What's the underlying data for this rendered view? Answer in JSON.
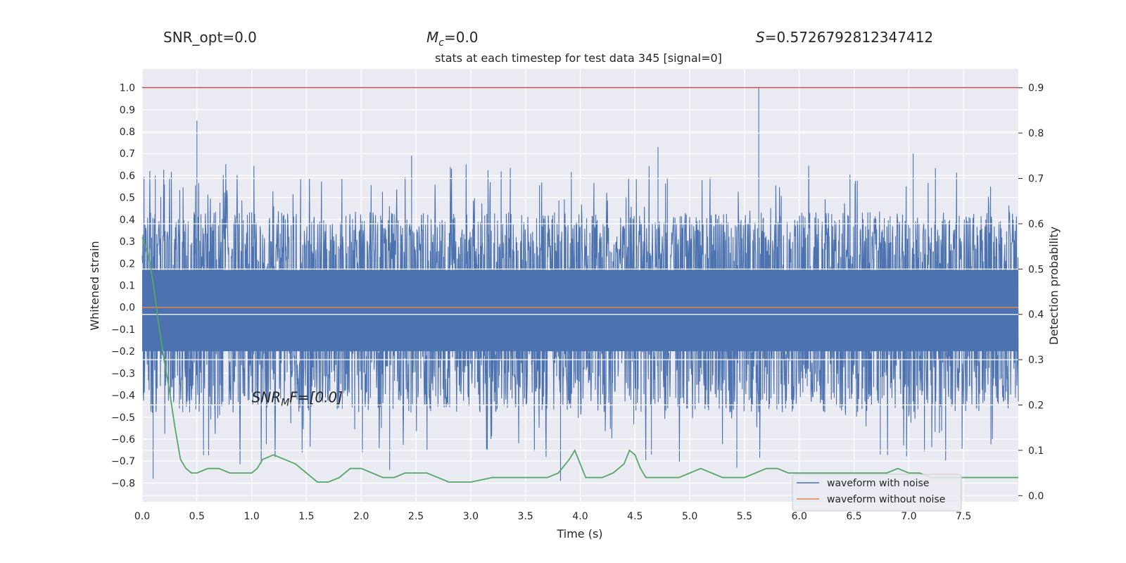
{
  "header": {
    "snr_opt": "SNR_opt=0.0",
    "mc_symbol": "M",
    "mc_sub": "c",
    "mc_value": "=0.0",
    "s_symbol": "S",
    "s_value": "=0.5726792812347412"
  },
  "chart_data": {
    "type": "line",
    "title": "stats at each timestep for test data 345 [signal=0]",
    "xlabel": "Time (s)",
    "ylabel": "Whitened strain",
    "y2label": "Detection probability",
    "xlim": [
      0,
      8
    ],
    "ylim": [
      -0.885,
      1.085
    ],
    "y2lim": [
      -0.0135,
      0.9415
    ],
    "x_ticks": [
      "0.0",
      "0.5",
      "1.0",
      "1.5",
      "2.0",
      "2.5",
      "3.0",
      "3.5",
      "4.0",
      "4.5",
      "5.0",
      "5.5",
      "6.0",
      "6.5",
      "7.0",
      "7.5"
    ],
    "y_ticks": [
      "1.0",
      "0.9",
      "0.8",
      "0.7",
      "0.6",
      "0.5",
      "0.4",
      "0.3",
      "0.2",
      "0.1",
      "0.0",
      "−0.1",
      "−0.2",
      "−0.3",
      "−0.4",
      "−0.5",
      "−0.6",
      "−0.7",
      "−0.8"
    ],
    "y2_ticks": [
      "0.9",
      "0.8",
      "0.7",
      "0.6",
      "0.5",
      "0.4",
      "0.3",
      "0.2",
      "0.1",
      "0.0"
    ],
    "threshold_line": {
      "axis": "y",
      "value": 1.0,
      "color": "#c44e52"
    },
    "annotation": {
      "base": "SNR",
      "sub": "M",
      "rest": "F=[0.0]",
      "x": 1.0,
      "y": -0.41
    },
    "noise_envelope": {
      "upper_typical": 0.3,
      "lower_typical": -0.33,
      "peaks": [
        [
          0.5,
          0.85
        ],
        [
          5.63,
          1.0
        ],
        [
          4.71,
          0.73
        ],
        [
          2.46,
          0.69
        ],
        [
          7.04,
          0.7
        ],
        [
          0.12,
          0.6
        ],
        [
          0.1,
          -0.78
        ],
        [
          3.82,
          -0.79
        ],
        [
          2.26,
          -0.74
        ],
        [
          5.43,
          -0.73
        ],
        [
          6.74,
          -0.67
        ],
        [
          4.65,
          -0.67
        ]
      ]
    },
    "series": [
      {
        "name": "waveform with noise",
        "color": "#4c72b0",
        "axis": "left",
        "kind": "noise"
      },
      {
        "name": "waveform without noise",
        "color": "#dd8452",
        "axis": "left",
        "x": [
          0,
          8
        ],
        "y": [
          0,
          0
        ]
      },
      {
        "name": "",
        "color": "#55a868",
        "axis": "right",
        "x": [
          0.0,
          0.05,
          0.1,
          0.15,
          0.2,
          0.25,
          0.3,
          0.35,
          0.4,
          0.45,
          0.5,
          0.6,
          0.7,
          0.8,
          0.9,
          1.0,
          1.05,
          1.1,
          1.2,
          1.3,
          1.4,
          1.45,
          1.5,
          1.55,
          1.6,
          1.7,
          1.8,
          1.9,
          2.0,
          2.1,
          2.2,
          2.3,
          2.4,
          2.5,
          2.6,
          2.7,
          2.8,
          2.9,
          3.0,
          3.2,
          3.4,
          3.5,
          3.6,
          3.7,
          3.8,
          3.9,
          3.95,
          4.0,
          4.05,
          4.1,
          4.2,
          4.3,
          4.4,
          4.45,
          4.5,
          4.55,
          4.6,
          4.7,
          4.8,
          4.9,
          5.0,
          5.1,
          5.2,
          5.3,
          5.4,
          5.5,
          5.6,
          5.7,
          5.8,
          5.9,
          6.0,
          6.1,
          6.2,
          6.3,
          6.4,
          6.5,
          6.6,
          6.7,
          6.8,
          6.9,
          7.0,
          7.1,
          7.2,
          7.3,
          7.4,
          7.5,
          7.6,
          7.7,
          7.8,
          7.9,
          8.0
        ],
        "y": [
          0.57,
          0.54,
          0.47,
          0.38,
          0.3,
          0.23,
          0.15,
          0.08,
          0.06,
          0.05,
          0.05,
          0.06,
          0.06,
          0.05,
          0.05,
          0.05,
          0.06,
          0.08,
          0.09,
          0.08,
          0.07,
          0.06,
          0.05,
          0.04,
          0.03,
          0.03,
          0.04,
          0.06,
          0.06,
          0.05,
          0.04,
          0.04,
          0.05,
          0.05,
          0.05,
          0.04,
          0.03,
          0.03,
          0.03,
          0.04,
          0.04,
          0.04,
          0.04,
          0.04,
          0.05,
          0.08,
          0.1,
          0.07,
          0.04,
          0.04,
          0.04,
          0.05,
          0.07,
          0.1,
          0.09,
          0.06,
          0.04,
          0.04,
          0.04,
          0.04,
          0.05,
          0.06,
          0.05,
          0.04,
          0.04,
          0.04,
          0.05,
          0.06,
          0.06,
          0.05,
          0.05,
          0.05,
          0.05,
          0.05,
          0.05,
          0.05,
          0.05,
          0.05,
          0.05,
          0.06,
          0.05,
          0.05,
          0.04,
          0.04,
          0.04,
          0.04,
          0.04,
          0.04,
          0.04,
          0.04,
          0.04
        ]
      }
    ],
    "legend": {
      "placement": "lower-right"
    },
    "grid": true
  }
}
